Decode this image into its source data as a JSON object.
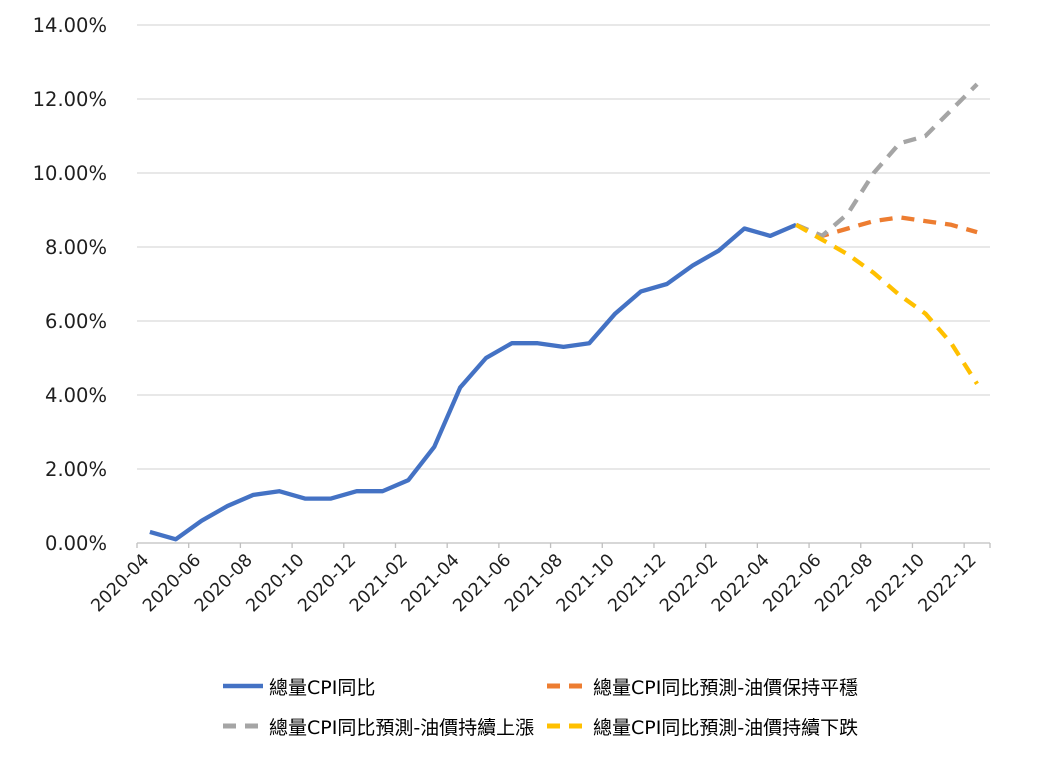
{
  "chart_data": {
    "type": "line",
    "title": "",
    "xlabel": "",
    "ylabel": "",
    "ylim": [
      0,
      14
    ],
    "grid": true,
    "legend_position": "bottom",
    "grid_color": "#D9D9D9",
    "axis_color": "#BFBFBF",
    "x": [
      "2020-04",
      "2020-05",
      "2020-06",
      "2020-07",
      "2020-08",
      "2020-09",
      "2020-10",
      "2020-11",
      "2020-12",
      "2021-01",
      "2021-02",
      "2021-03",
      "2021-04",
      "2021-05",
      "2021-06",
      "2021-07",
      "2021-08",
      "2021-09",
      "2021-10",
      "2021-11",
      "2021-12",
      "2022-01",
      "2022-02",
      "2022-03",
      "2022-04",
      "2022-05",
      "2022-06",
      "2022-07",
      "2022-08",
      "2022-09",
      "2022-10",
      "2022-11",
      "2022-12"
    ],
    "x_tick_labels": [
      "2020-04",
      "2020-06",
      "2020-08",
      "2020-10",
      "2020-12",
      "2021-02",
      "2021-04",
      "2021-06",
      "2021-08",
      "2021-10",
      "2021-12",
      "2022-02",
      "2022-04",
      "2022-06",
      "2022-08",
      "2022-10",
      "2022-12"
    ],
    "y_ticks": [
      "0.00%",
      "2.00%",
      "4.00%",
      "6.00%",
      "8.00%",
      "10.00%",
      "12.00%",
      "14.00%"
    ],
    "series": [
      {
        "name": "總量CPI同比",
        "color": "#4472C4",
        "style": "solid",
        "start_index": 0,
        "values": [
          0.3,
          0.1,
          0.6,
          1.0,
          1.3,
          1.4,
          1.2,
          1.2,
          1.4,
          1.4,
          1.7,
          2.6,
          4.2,
          5.0,
          5.4,
          5.4,
          5.3,
          5.4,
          6.2,
          6.8,
          7.0,
          7.5,
          7.9,
          8.5,
          8.3,
          8.6
        ]
      },
      {
        "name": "總量CPI同比預測-油價保持平穩",
        "color": "#ED7D31",
        "style": "dashed",
        "start_index": 25,
        "values": [
          8.6,
          8.3,
          8.5,
          8.7,
          8.8,
          8.7,
          8.6,
          8.4
        ]
      },
      {
        "name": "總量CPI同比預測-油價持續上漲",
        "color": "#A5A5A5",
        "style": "dashed",
        "start_index": 25,
        "values": [
          8.6,
          8.3,
          8.9,
          10.0,
          10.8,
          11.0,
          11.7,
          12.4
        ]
      },
      {
        "name": "總量CPI同比預測-油價持續下跌",
        "color": "#FFC000",
        "style": "dashed",
        "start_index": 25,
        "values": [
          8.6,
          8.2,
          7.8,
          7.3,
          6.7,
          6.2,
          5.4,
          4.3
        ]
      }
    ]
  }
}
